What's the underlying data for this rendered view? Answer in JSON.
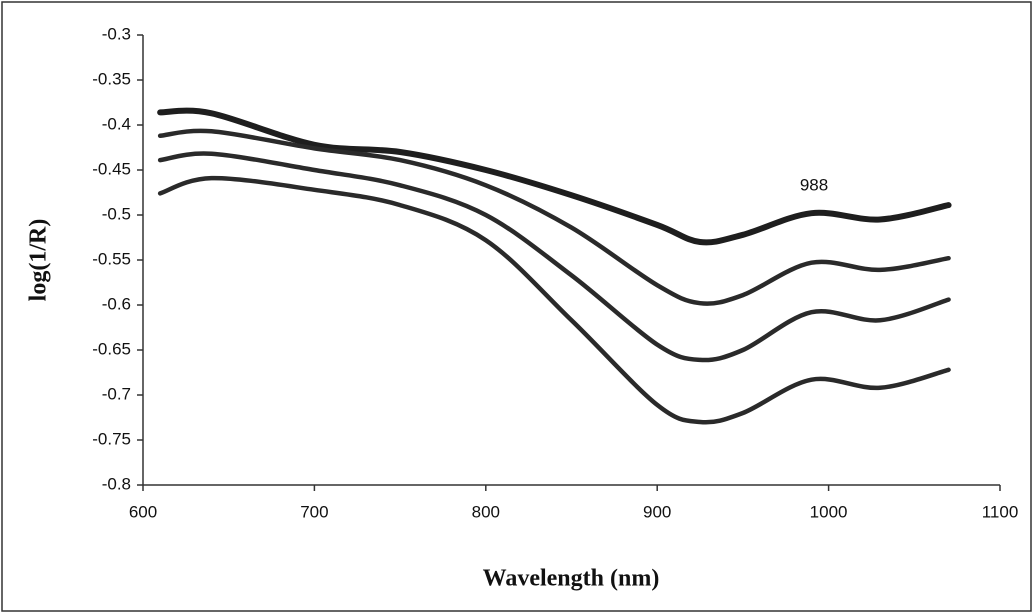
{
  "chart_data": {
    "type": "line",
    "y_label": "log(1/R)",
    "x_label": "Wavelength (nm)",
    "annotation": "988",
    "x": [
      610,
      640,
      700,
      750,
      800,
      850,
      900,
      925,
      950,
      990,
      1030,
      1070
    ],
    "series": [
      {
        "color": "#1e1e1e",
        "values": [
          -0.386,
          -0.387,
          -0.422,
          -0.43,
          -0.45,
          -0.478,
          -0.511,
          -0.53,
          -0.522,
          -0.498,
          -0.505,
          -0.489
        ]
      },
      {
        "color": "#2a2a2a",
        "values": [
          -0.412,
          -0.407,
          -0.426,
          -0.439,
          -0.467,
          -0.514,
          -0.578,
          -0.598,
          -0.589,
          -0.553,
          -0.561,
          -0.548
        ]
      },
      {
        "color": "#2a2a2a",
        "values": [
          -0.439,
          -0.432,
          -0.45,
          -0.467,
          -0.5,
          -0.567,
          -0.644,
          -0.661,
          -0.65,
          -0.608,
          -0.617,
          -0.594
        ]
      },
      {
        "color": "#2a2a2a",
        "values": [
          -0.476,
          -0.459,
          -0.472,
          -0.489,
          -0.528,
          -0.617,
          -0.711,
          -0.73,
          -0.72,
          -0.683,
          -0.692,
          -0.672
        ]
      }
    ],
    "xlim": [
      600,
      1100
    ],
    "xticks": [
      600,
      700,
      800,
      900,
      1000,
      1100
    ],
    "ylim": [
      -0.8,
      -0.3
    ],
    "yticks": [
      -0.8,
      -0.75,
      -0.7,
      -0.65,
      -0.6,
      -0.55,
      -0.5,
      -0.45,
      -0.4,
      -0.35,
      -0.3
    ]
  }
}
